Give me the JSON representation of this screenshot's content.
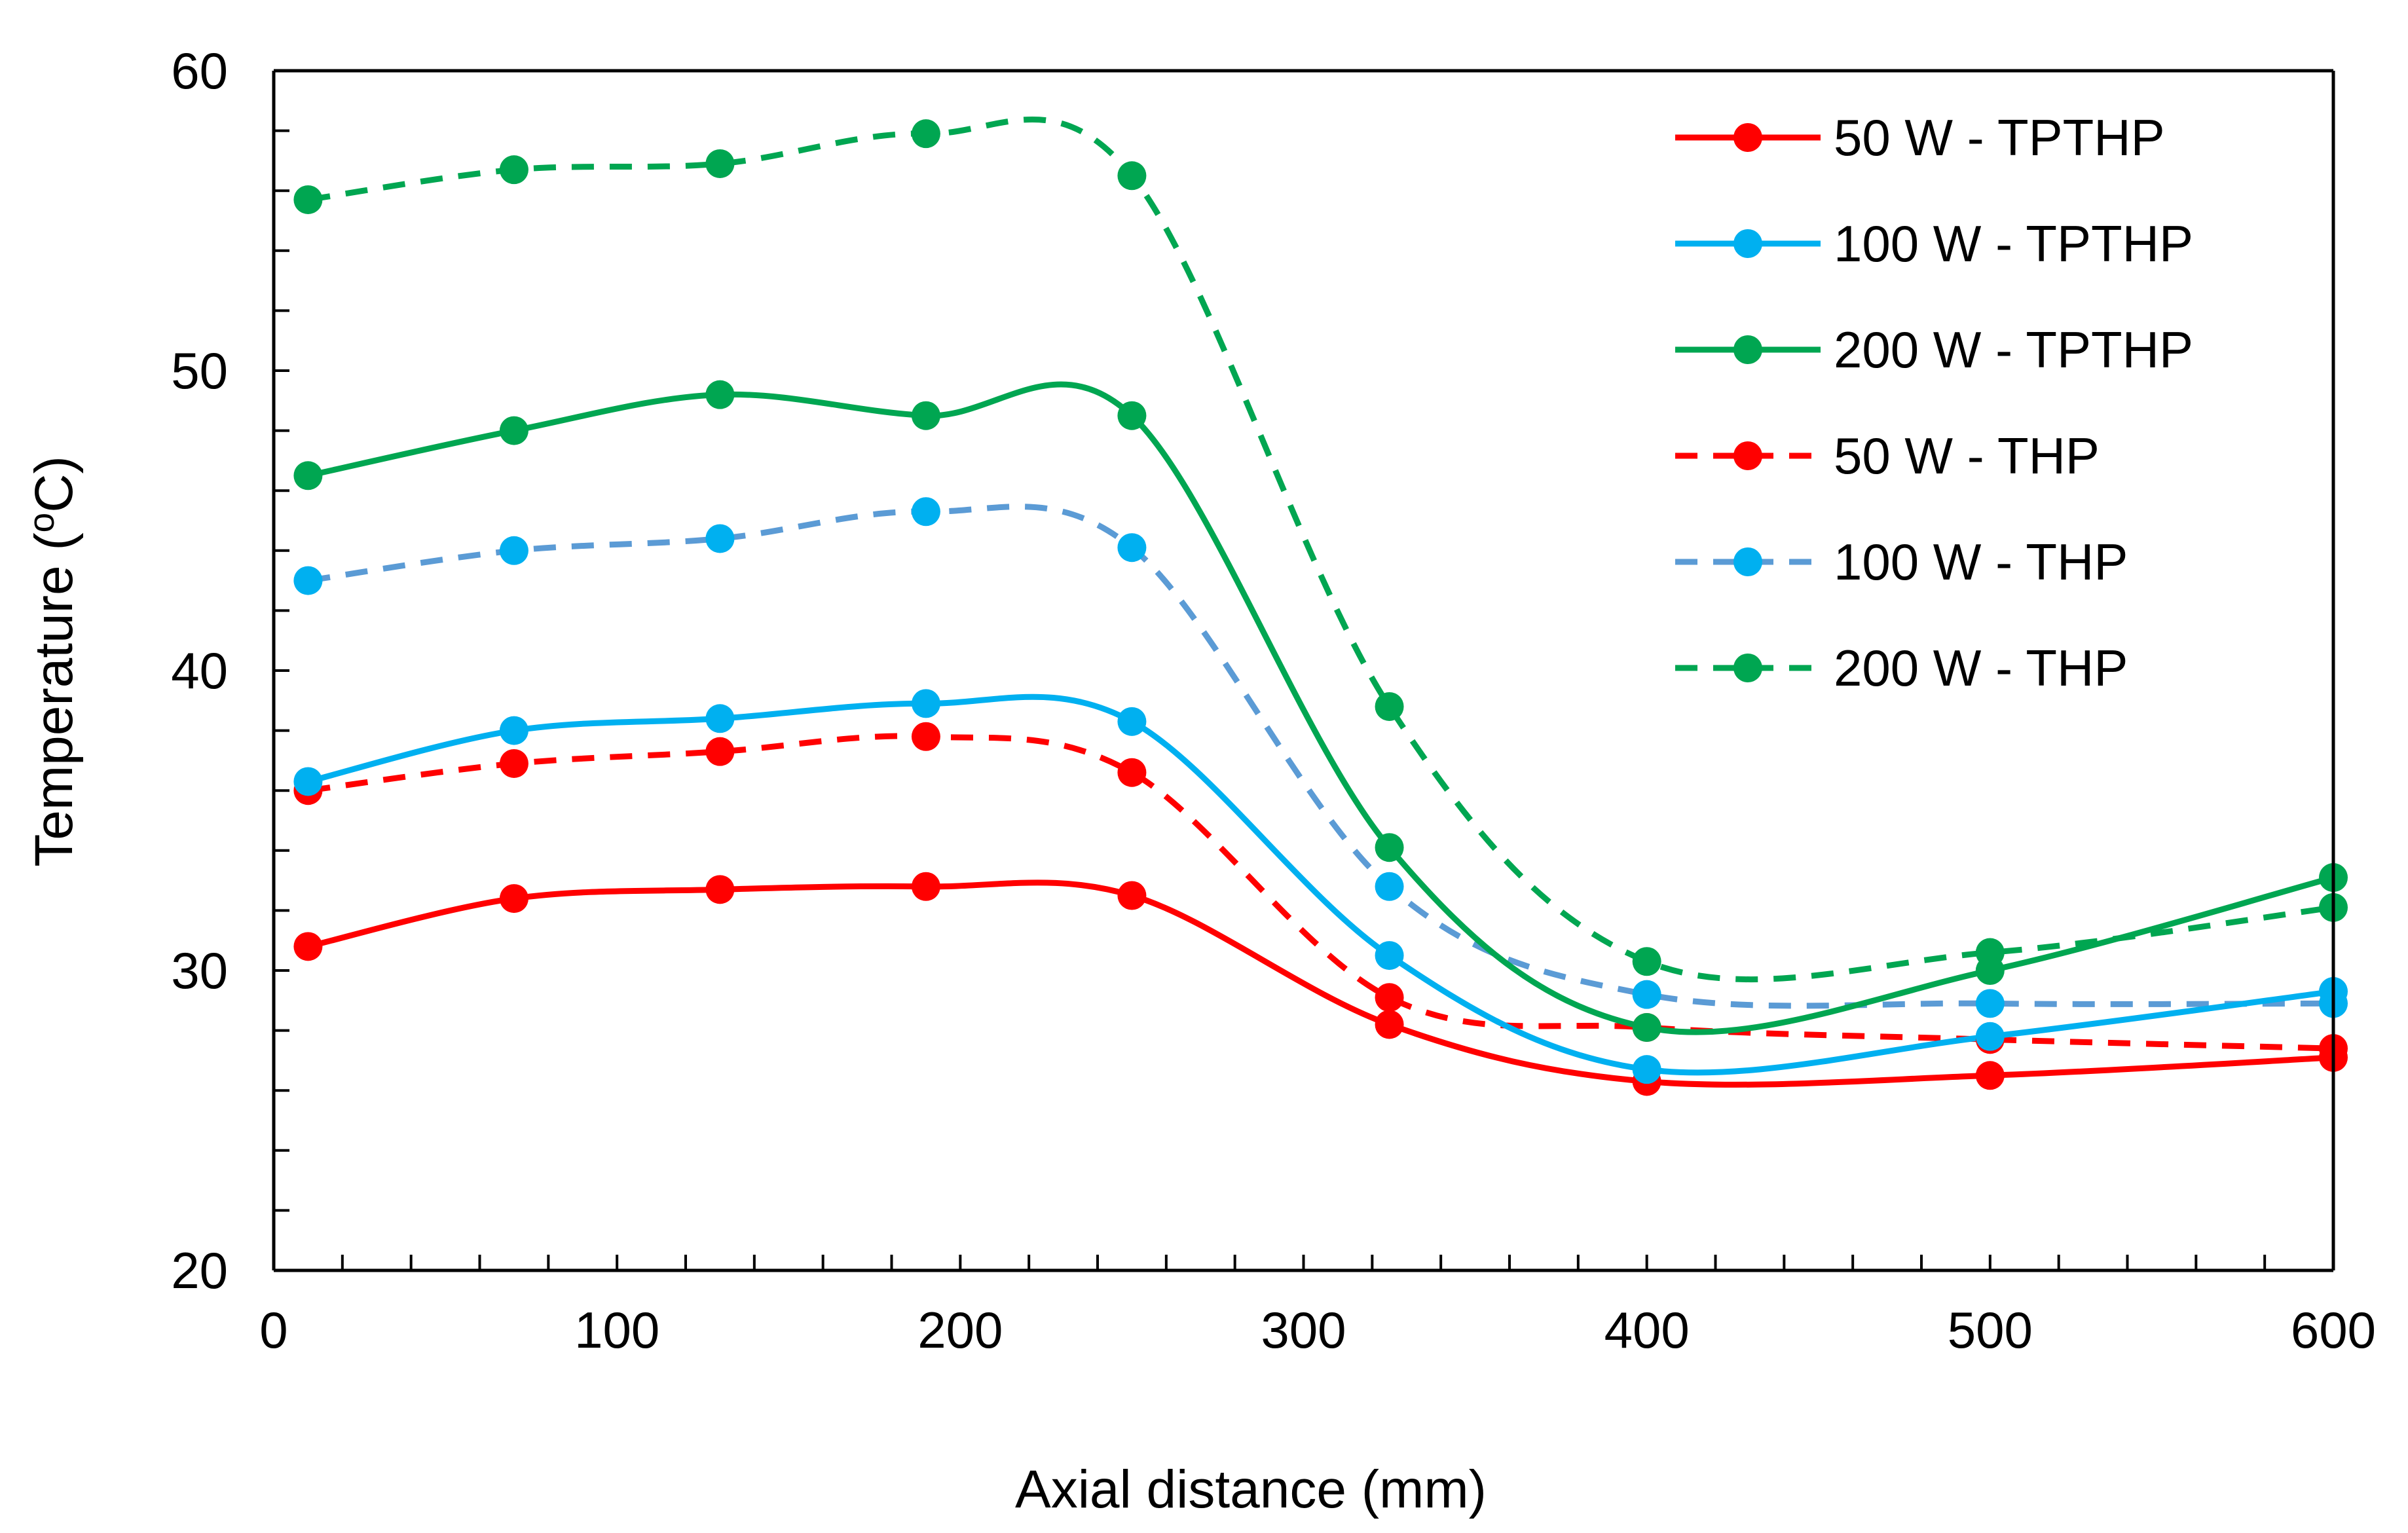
{
  "chart_data": {
    "type": "line",
    "title": "",
    "xlabel": "Axial distance (mm)",
    "ylabel": "Temperature (",
    "ylabel_superscript": "o",
    "ylabel_suffix": "C)",
    "xlim": [
      0,
      600
    ],
    "ylim": [
      20,
      60
    ],
    "x_major_ticks": [
      0,
      100,
      200,
      300,
      400,
      500,
      600
    ],
    "x_tick_labels": [
      "0",
      "100",
      "200",
      "300",
      "400",
      "500",
      "600"
    ],
    "x_minor_step": 20,
    "y_major_ticks": [
      20,
      30,
      40,
      50,
      60
    ],
    "y_tick_labels": [
      "20",
      "30",
      "40",
      "50",
      "60"
    ],
    "y_minor_step": 2,
    "grid": false,
    "legend_position": "top-right",
    "x": [
      10,
      70,
      130,
      190,
      250,
      325,
      400,
      500,
      600
    ],
    "series": [
      {
        "name": "50 W - TPTHP",
        "color": "#ff0000",
        "dash": "solid",
        "values": [
          30.8,
          32.4,
          32.7,
          32.8,
          32.5,
          28.2,
          26.3,
          26.5,
          27.1
        ]
      },
      {
        "name": "100 W - TPTHP",
        "color": "#00b0f0",
        "line_color": "#00b0f0",
        "dash": "solid",
        "values": [
          36.3,
          38.0,
          38.4,
          38.9,
          38.3,
          30.5,
          26.7,
          27.8,
          29.3
        ]
      },
      {
        "name": "200 W - TPTHP",
        "color": "#00a651",
        "dash": "solid",
        "values": [
          46.5,
          48.0,
          49.2,
          48.5,
          48.5,
          34.1,
          28.1,
          30.0,
          33.1
        ]
      },
      {
        "name": "50 W - THP",
        "color": "#ff0000",
        "dash": "dashed",
        "values": [
          36.0,
          36.9,
          37.3,
          37.8,
          36.6,
          29.1,
          28.1,
          27.7,
          27.4
        ]
      },
      {
        "name": "100 W - THP",
        "color": "#00b0f0",
        "line_color": "#5b9bd5",
        "dash": "dashed",
        "values": [
          43.0,
          44.0,
          44.4,
          45.3,
          44.1,
          32.8,
          29.2,
          28.9,
          28.9
        ]
      },
      {
        "name": "200 W - THP",
        "color": "#00a651",
        "dash": "dashed",
        "values": [
          55.7,
          56.7,
          56.9,
          57.9,
          56.5,
          38.8,
          30.3,
          30.6,
          32.1
        ]
      }
    ]
  }
}
